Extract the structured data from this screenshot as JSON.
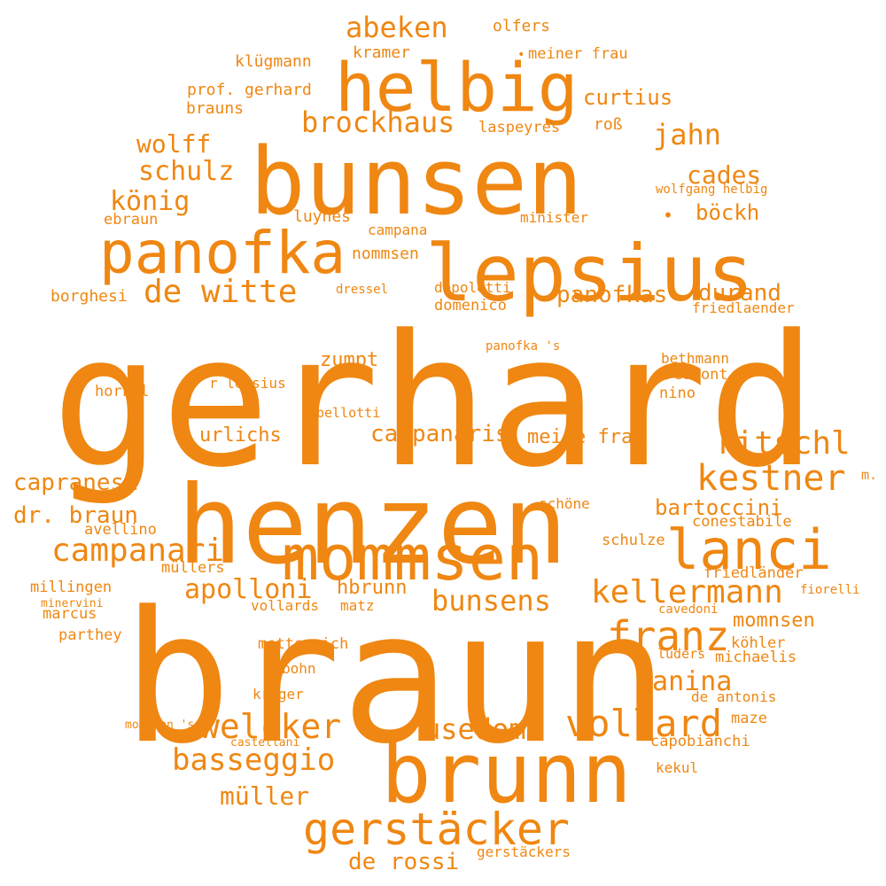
{
  "color": "#ef8712",
  "words": [
    {
      "text": "gerhard"
    },
    {
      "text": "braun"
    },
    {
      "text": "henzen"
    },
    {
      "text": "bunsen"
    },
    {
      "text": "lepsius"
    },
    {
      "text": "brunn"
    },
    {
      "text": "helbig"
    },
    {
      "text": "mommsen"
    },
    {
      "text": "panofka"
    },
    {
      "text": "lanci"
    },
    {
      "text": "gerstäcker"
    },
    {
      "text": "vollard"
    },
    {
      "text": "franz"
    },
    {
      "text": "kestner"
    },
    {
      "text": "welcker"
    },
    {
      "text": "kellermann"
    },
    {
      "text": "ritschl"
    },
    {
      "text": "de witte"
    },
    {
      "text": "campanari"
    },
    {
      "text": "basseggio"
    },
    {
      "text": "abeken"
    },
    {
      "text": "brockhaus"
    },
    {
      "text": "bunsens"
    },
    {
      "text": "usedom"
    },
    {
      "text": "apolloni"
    },
    {
      "text": "canina"
    },
    {
      "text": "jahn"
    },
    {
      "text": "schulz"
    },
    {
      "text": "könig"
    },
    {
      "text": "wolff"
    },
    {
      "text": "müller"
    },
    {
      "text": "de rossi"
    },
    {
      "text": "cades"
    },
    {
      "text": "campanaris"
    },
    {
      "text": "capranesi"
    },
    {
      "text": "dr. braun"
    },
    {
      "text": "panofkas"
    },
    {
      "text": "durand"
    },
    {
      "text": "böckh"
    },
    {
      "text": "curtius"
    },
    {
      "text": "bartoccini"
    },
    {
      "text": "meine frau"
    },
    {
      "text": "urlichs"
    },
    {
      "text": "hbrunn"
    },
    {
      "text": "momnsen"
    },
    {
      "text": "zumpt"
    },
    {
      "text": "klügmann"
    },
    {
      "text": "prof. gerhard"
    },
    {
      "text": "brauns"
    },
    {
      "text": "olfers"
    },
    {
      "text": "kramer"
    },
    {
      "text": "meiner frau"
    },
    {
      "text": "laspeyres"
    },
    {
      "text": "roß"
    },
    {
      "text": "wolfgang helbig"
    },
    {
      "text": "minister"
    },
    {
      "text": "luynes"
    },
    {
      "text": "campana"
    },
    {
      "text": "ebraun"
    },
    {
      "text": "nommsen"
    },
    {
      "text": "borghesi"
    },
    {
      "text": "dressel"
    },
    {
      "text": "depoletti"
    },
    {
      "text": "domenico"
    },
    {
      "text": "friedlaender"
    },
    {
      "text": "panofka 's"
    },
    {
      "text": "bethmann"
    },
    {
      "text": "reumont"
    },
    {
      "text": "nino"
    },
    {
      "text": "r lepsius"
    },
    {
      "text": "horkel"
    },
    {
      "text": "bellotti"
    },
    {
      "text": "m."
    },
    {
      "text": "schöne"
    },
    {
      "text": "conestabile"
    },
    {
      "text": "avellino"
    },
    {
      "text": "schulze"
    },
    {
      "text": "müllers"
    },
    {
      "text": "friedländer"
    },
    {
      "text": "millingen"
    },
    {
      "text": "fiorelli"
    },
    {
      "text": "minervini"
    },
    {
      "text": "vollards"
    },
    {
      "text": "matz"
    },
    {
      "text": "cavedoni"
    },
    {
      "text": "marcus"
    },
    {
      "text": "parthey"
    },
    {
      "text": "köhler"
    },
    {
      "text": "metternich"
    },
    {
      "text": "lüders"
    },
    {
      "text": "michaelis"
    },
    {
      "text": "bohn"
    },
    {
      "text": "krüger"
    },
    {
      "text": "de antonis"
    },
    {
      "text": "mommsen 's"
    },
    {
      "text": "maze"
    },
    {
      "text": "castellani"
    },
    {
      "text": "capobianchi"
    },
    {
      "text": "kekul"
    },
    {
      "text": "gerstäckers"
    },
    {
      "text": "•"
    },
    {
      "text": "•"
    }
  ]
}
